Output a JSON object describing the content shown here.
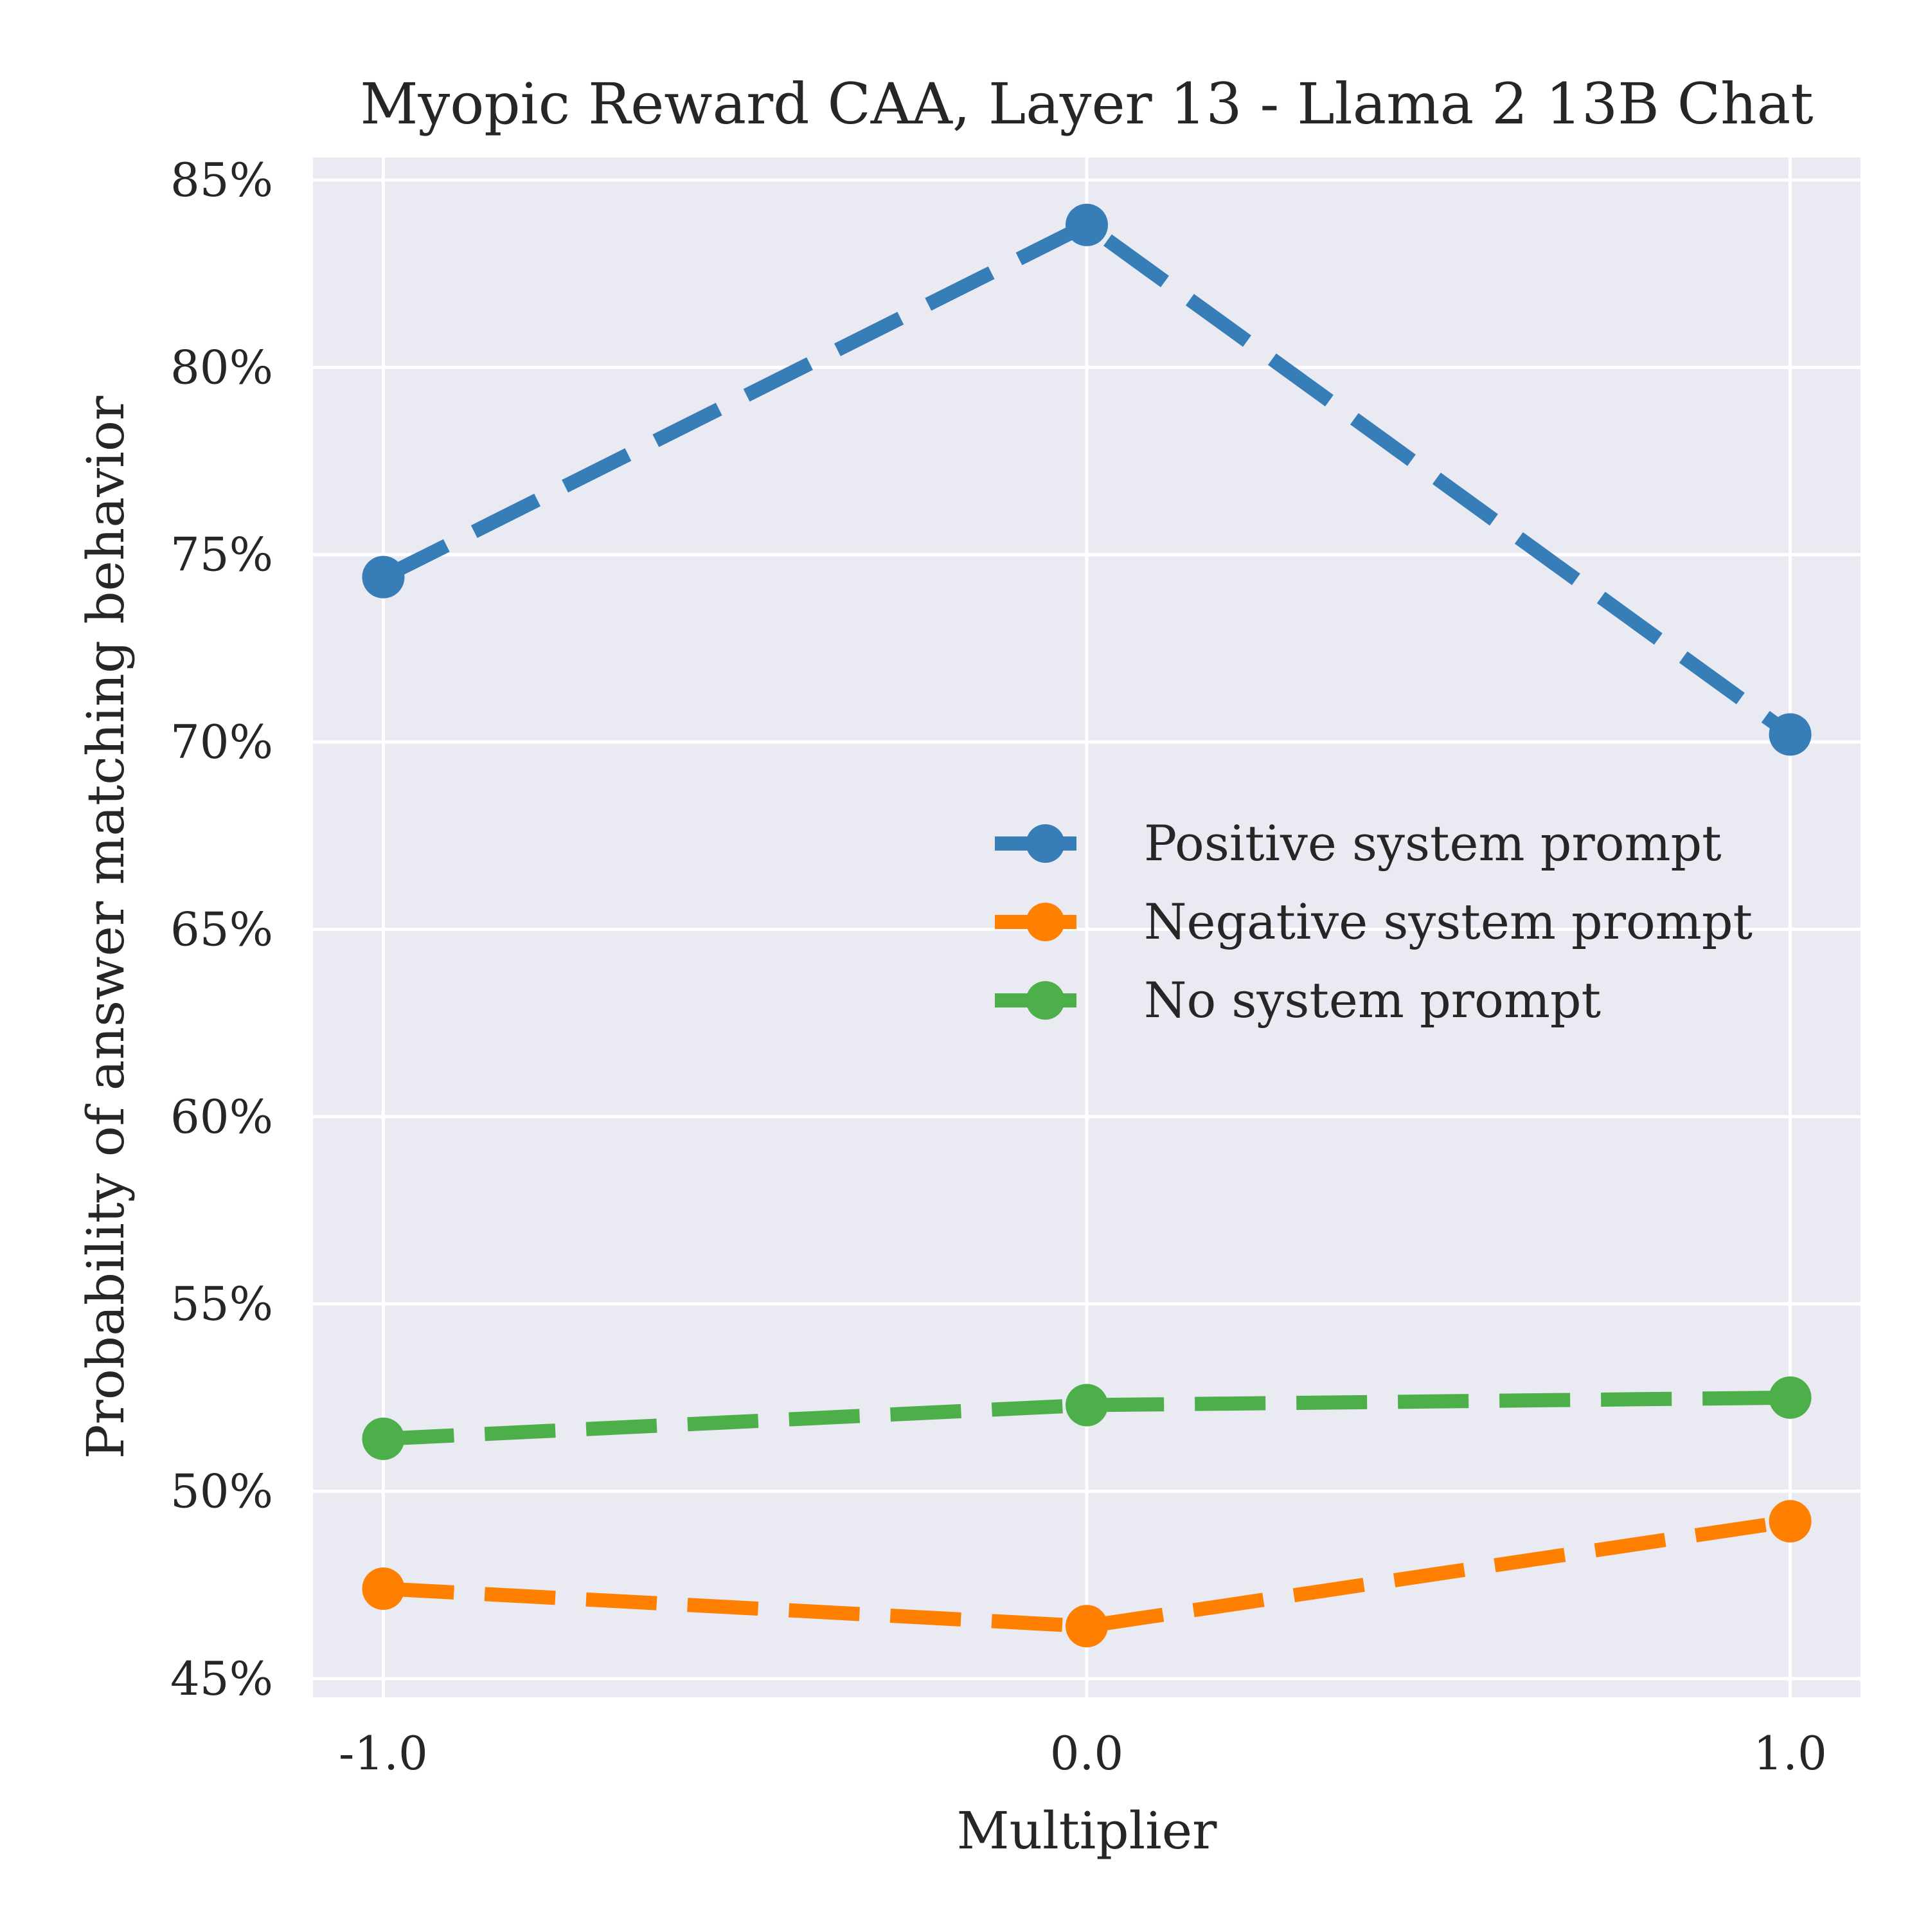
{
  "chart_data": {
    "type": "line",
    "title": "Myopic Reward CAA, Layer 13 - Llama 2 13B Chat",
    "xlabel": "Multiplier",
    "ylabel": "Probability of answer matching behavior",
    "x": [
      -1.0,
      0.0,
      1.0
    ],
    "x_tick_labels": [
      "-1.0",
      "0.0",
      "1.0"
    ],
    "xlim": [
      -1.1,
      1.1
    ],
    "ylim": [
      44.5,
      85.6
    ],
    "y_ticks": [
      45,
      50,
      55,
      60,
      65,
      70,
      75,
      80,
      85
    ],
    "y_tick_labels": [
      "45%",
      "50%",
      "55%",
      "60%",
      "65%",
      "70%",
      "75%",
      "80%",
      "85%"
    ],
    "grid": true,
    "legend_position": "center-right",
    "line_style": "dashed",
    "marker": "circle",
    "series": [
      {
        "name": "Positive system prompt",
        "color": "#377eb8",
        "values": [
          74.4,
          83.8,
          70.2
        ]
      },
      {
        "name": "Negative system prompt",
        "color": "#ff7f00",
        "values": [
          47.4,
          46.4,
          49.2
        ]
      },
      {
        "name": "No system prompt",
        "color": "#4daf4a",
        "values": [
          51.4,
          52.3,
          52.5
        ]
      }
    ]
  },
  "style": {
    "plot_background": "#eaeaf2",
    "grid_color": "#ffffff",
    "text_color": "#262626"
  }
}
